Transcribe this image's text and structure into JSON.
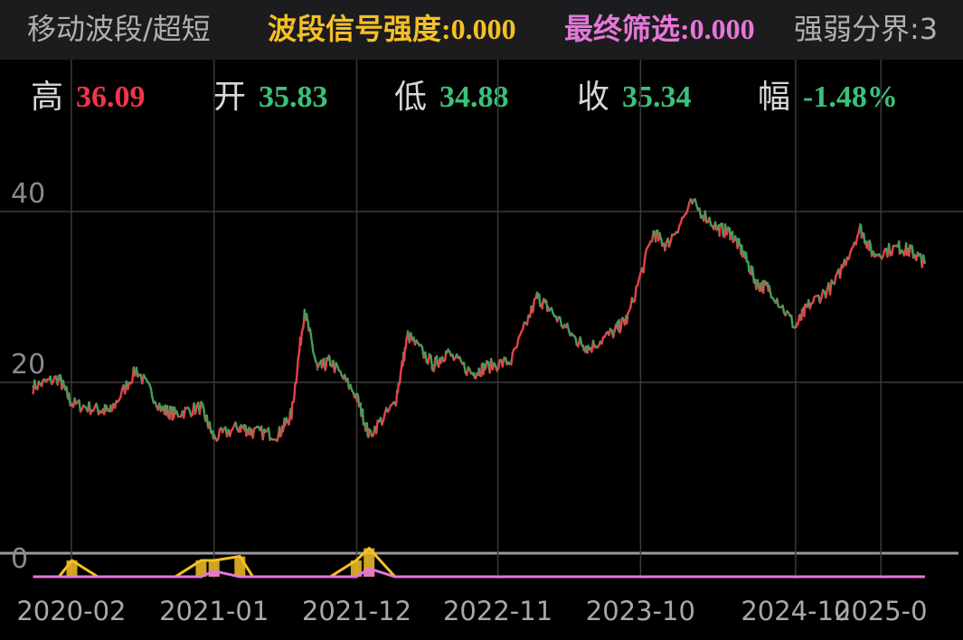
{
  "header": {
    "indicator_name": "移动波段/超短",
    "signal_strength": "波段信号强度:0.000",
    "final_filter": "最终筛选:0.000",
    "threshold": "强弱分界:3"
  },
  "ohlc": {
    "high_label": "高",
    "high_value": "36.09",
    "open_label": "开",
    "open_value": "35.83",
    "low_label": "低",
    "low_value": "34.88",
    "close_label": "收",
    "close_value": "35.34",
    "change_label": "幅",
    "change_value": "-1.48%"
  },
  "colors": {
    "up": "#e8404a",
    "down": "#3fa05a",
    "signal": "#f5c026",
    "filter": "#e577d8",
    "zero_line": "#9a9a9a",
    "grid": "#3a3a3a",
    "high_value": "#f0364a",
    "neutral_value": "#3cc07a",
    "signal_text": "#f5c026",
    "filter_text": "#e577d8",
    "indicator_name_text": "#b0b0b0",
    "threshold_text": "#b0b0b0"
  },
  "chart_data": {
    "type": "line",
    "x_tick_labels": [
      "2020-02",
      "2021-01",
      "2021-12",
      "2022-11",
      "2023-10",
      "2024-10",
      "2025-0"
    ],
    "y_tick_labels": [
      "40",
      "20",
      "0"
    ],
    "ylim": [
      0,
      45
    ],
    "grid": true,
    "x": [
      "2019-11",
      "2020-01",
      "2020-02",
      "2020-04",
      "2020-05",
      "2020-07",
      "2020-09",
      "2020-10",
      "2020-12",
      "2021-01",
      "2021-03",
      "2021-04",
      "2021-06",
      "2021-07",
      "2021-08",
      "2021-09",
      "2021-10",
      "2021-12",
      "2022-01",
      "2022-03",
      "2022-04",
      "2022-06",
      "2022-07",
      "2022-09",
      "2022-10",
      "2022-12",
      "2023-02",
      "2023-03",
      "2023-05",
      "2023-06",
      "2023-08",
      "2023-09",
      "2023-11",
      "2023-12",
      "2024-02",
      "2024-04",
      "2024-05",
      "2024-06",
      "2024-07",
      "2024-08",
      "2024-10",
      "2024-11",
      "2025-01",
      "2025-03",
      "2025-04",
      "2025-06",
      "2025-07",
      "2025-08"
    ],
    "series": [
      {
        "values": [
          19.5,
          20.5,
          17.5,
          16.8,
          16.6,
          21.5,
          16.8,
          16.3,
          17.1,
          13.5,
          14.8,
          14.2,
          13.9,
          16.3,
          28.5,
          21.5,
          22.5,
          18.5,
          13.8,
          17.5,
          25.5,
          22.0,
          23.5,
          21.0,
          21.8,
          22.5,
          30.0,
          28.5,
          25.0,
          24.0,
          26.0,
          27.5,
          37.5,
          36.0,
          41.0,
          38.0,
          37.5,
          35.0,
          31.5,
          31.0,
          26.5,
          29.0,
          31.5,
          38.0,
          35.0,
          35.8,
          35.3,
          34.0
        ]
      },
      {
        "values": [
          0,
          0,
          2.0,
          0,
          0,
          0,
          0,
          0,
          2.0,
          2.0,
          2.5,
          0,
          0,
          0,
          0,
          0,
          0,
          2.0,
          3.5,
          0,
          0,
          0,
          0,
          0,
          0,
          0,
          0,
          0,
          0,
          0,
          0,
          0,
          0,
          0,
          0,
          0,
          0,
          0,
          0,
          0,
          0,
          0,
          0,
          0,
          0,
          0,
          0,
          0
        ]
      },
      {
        "values": [
          0,
          0,
          0,
          0,
          0,
          0,
          0,
          0,
          0,
          0.7,
          0,
          0,
          0,
          0,
          0,
          0,
          0,
          0,
          1.0,
          0,
          0,
          0,
          0,
          0,
          0,
          0,
          0,
          0,
          0,
          0,
          0,
          0,
          0,
          0,
          0,
          0,
          0,
          0,
          0,
          0,
          0,
          0,
          0,
          0,
          0,
          0,
          0,
          0
        ]
      }
    ]
  }
}
